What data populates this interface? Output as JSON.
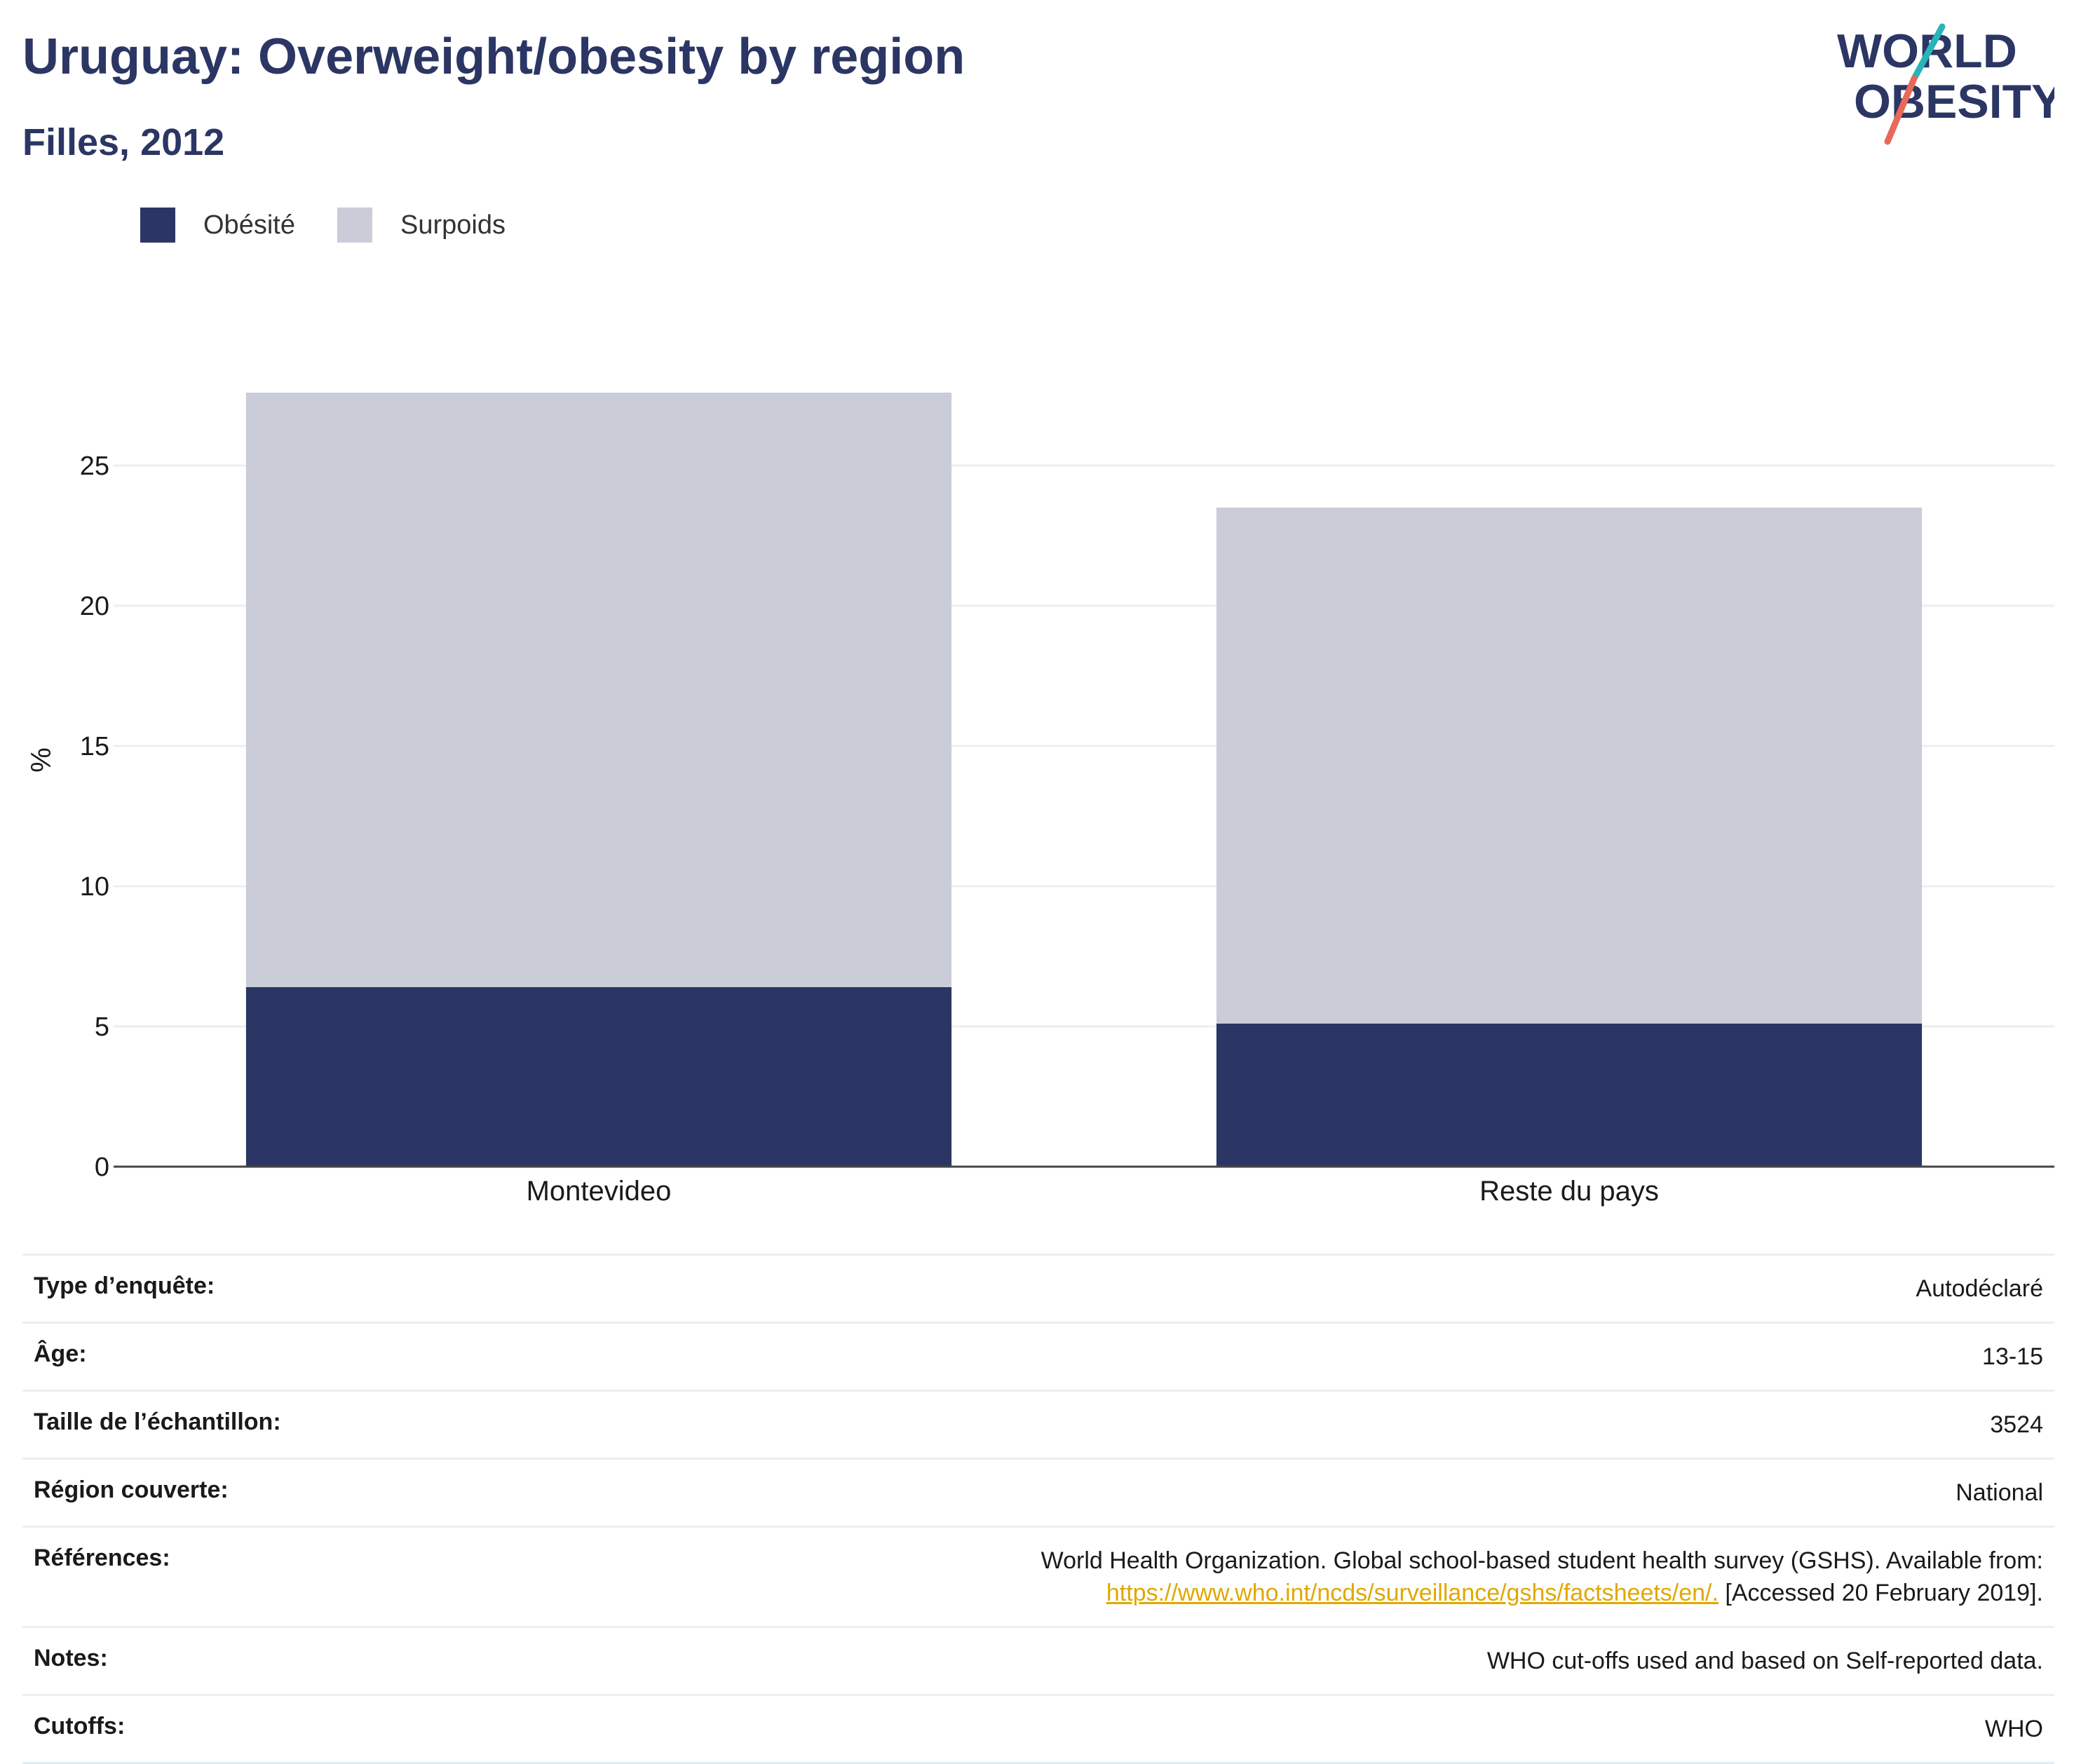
{
  "header": {
    "title": "Uruguay: Overweight/obesity by region",
    "subtitle": "Filles, 2012",
    "logo_line1": "WORLD",
    "logo_line2": "OBESITY"
  },
  "legend": {
    "items": [
      {
        "label": "Obésité",
        "color": "#2b3664"
      },
      {
        "label": "Surpoids",
        "color": "#cacdd8"
      }
    ]
  },
  "chart_data": {
    "type": "bar",
    "stacked": true,
    "categories": [
      "Montevideo",
      "Reste du pays"
    ],
    "series": [
      {
        "name": "Obésité",
        "values": [
          6.4,
          5.1
        ],
        "color": "#2b3664"
      },
      {
        "name": "Surpoids",
        "values": [
          21.2,
          18.4
        ],
        "color": "#cacdd8"
      }
    ],
    "xlabel": "",
    "ylabel": "%",
    "yticks": [
      0,
      5,
      10,
      15,
      20,
      25
    ],
    "ylim": [
      0,
      28
    ],
    "grid": true,
    "legend_position": "top-left"
  },
  "info": {
    "rows": [
      {
        "key": "Type d’enquête:",
        "value": "Autodéclaré"
      },
      {
        "key": "Âge:",
        "value": "13-15"
      },
      {
        "key": "Taille de l’échantillon:",
        "value": "3524"
      },
      {
        "key": "Région couverte:",
        "value": "National"
      },
      {
        "key": "Références:",
        "value": "World Health Organization. Global school-based student health survey (GSHS). Available from:",
        "link": "https://www.who.int/ncds/surveillance/gshs/factsheets/en/.",
        "suffix": " [Accessed 20 February 2019]."
      },
      {
        "key": "Notes:",
        "value": "WHO cut-offs used and based on Self-reported data."
      },
      {
        "key": "Cutoffs:",
        "value": "WHO"
      }
    ]
  }
}
